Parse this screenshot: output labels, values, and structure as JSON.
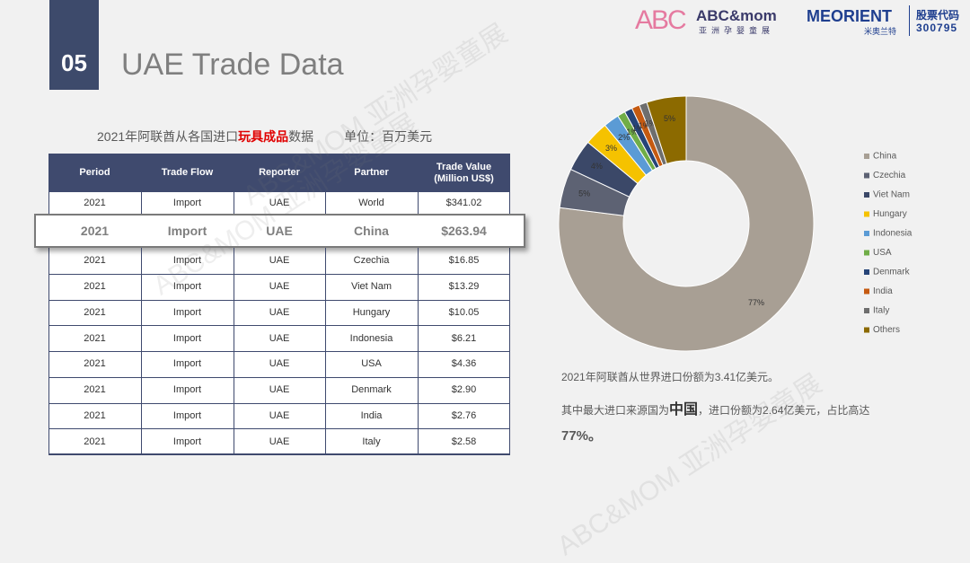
{
  "header": {
    "number": "05",
    "title": "UAE Trade Data",
    "logo_abc": "ABC",
    "logo_abcmom": "ABC&mom",
    "logo_abcmom_sub": "亚洲孕婴童展",
    "logo_meorient": "MEORIENT",
    "logo_meorient_sub": "米奥兰特",
    "stock_label": "股票代码",
    "stock_code": "300795"
  },
  "watermark": "ABC&MOM 亚洲孕婴童展",
  "subtitle": {
    "part1": "2021年阿联酋从各国进口",
    "highlight": "玩具成品",
    "part2": "数据",
    "unit": "单位：百万美元"
  },
  "table": {
    "columns": [
      "Period",
      "Trade Flow",
      "Reporter",
      "Partner",
      "Trade Value (Million US$)"
    ],
    "rows": [
      [
        "2021",
        "Import",
        "UAE",
        "World",
        "$341.02"
      ],
      [
        "2021",
        "Import",
        "UAE",
        "China",
        "$263.94"
      ],
      [
        "2021",
        "Import",
        "UAE",
        "Czechia",
        "$16.85"
      ],
      [
        "2021",
        "Import",
        "UAE",
        "Viet Nam",
        "$13.29"
      ],
      [
        "2021",
        "Import",
        "UAE",
        "Hungary",
        "$10.05"
      ],
      [
        "2021",
        "Import",
        "UAE",
        "Indonesia",
        "$6.21"
      ],
      [
        "2021",
        "Import",
        "UAE",
        "USA",
        "$4.36"
      ],
      [
        "2021",
        "Import",
        "UAE",
        "Denmark",
        "$2.90"
      ],
      [
        "2021",
        "Import",
        "UAE",
        "India",
        "$2.76"
      ],
      [
        "2021",
        "Import",
        "UAE",
        "Italy",
        "$2.58"
      ]
    ]
  },
  "chart_data": {
    "type": "pie",
    "categories": [
      "China",
      "Czechia",
      "Viet Nam",
      "Hungary",
      "Indonesia",
      "USA",
      "Denmark",
      "India",
      "Italy",
      "Others"
    ],
    "values": [
      77,
      5,
      4,
      3,
      2,
      1,
      1,
      1,
      1,
      5
    ],
    "value_labels": [
      "77%",
      "5%",
      "4%",
      "3%",
      "2%",
      "1%",
      "1%",
      "1%",
      "1%",
      "5%"
    ],
    "colors": [
      "#a89f94",
      "#5d6273",
      "#3b4868",
      "#f5c200",
      "#5b9bd5",
      "#70ad47",
      "#264478",
      "#c55a11",
      "#6e6e6e",
      "#8c6a00"
    ],
    "legend": "right"
  },
  "notes": {
    "line1": "2021年阿联酋从世界进口份额为3.41亿美元。",
    "line2a": "其中最大进口来源国为",
    "line2b": "中国",
    "line2c": "，进口份额为2.64亿美元，占比高达",
    "line3": "77%。"
  }
}
